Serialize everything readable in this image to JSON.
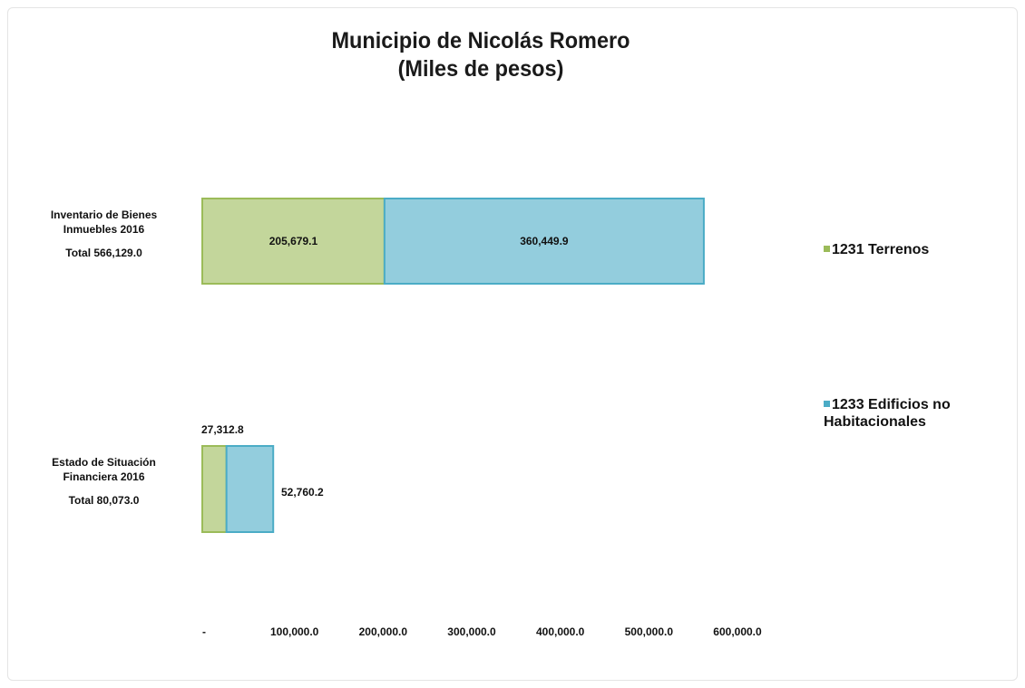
{
  "chart_data": {
    "type": "bar",
    "orientation": "horizontal",
    "stacked": true,
    "title": "Municipio de Nicolás Romero",
    "subtitle": "(Miles de pesos)",
    "categories": [
      {
        "name": "Inventario de Bienes Inmuebles 2016",
        "total_label": "Total 566,129.0"
      },
      {
        "name": "Estado de Situación Financiera 2016",
        "total_label": "Total  80,073.0"
      }
    ],
    "series": [
      {
        "name": "1231 Terrenos",
        "color": "#c3d69b",
        "values": [
          205679.1,
          27312.8
        ],
        "labels": [
          "205,679.1",
          "27,312.8"
        ]
      },
      {
        "name": "1233 Edificios no Habitacionales",
        "color": "#93cddd",
        "values": [
          360449.9,
          52760.2
        ],
        "labels": [
          "360,449.9",
          "52,760.2"
        ]
      }
    ],
    "xlim": [
      0,
      600000
    ],
    "x_ticks": [
      {
        "value": 0,
        "label": "-"
      },
      {
        "value": 100000,
        "label": "100,000.0"
      },
      {
        "value": 200000,
        "label": "200,000.0"
      },
      {
        "value": 300000,
        "label": "300,000.0"
      },
      {
        "value": 400000,
        "label": "400,000.0"
      },
      {
        "value": 500000,
        "label": "500,000.0"
      },
      {
        "value": 600000,
        "label": "600,000.0"
      }
    ],
    "grid": false,
    "legend_position": "right"
  }
}
